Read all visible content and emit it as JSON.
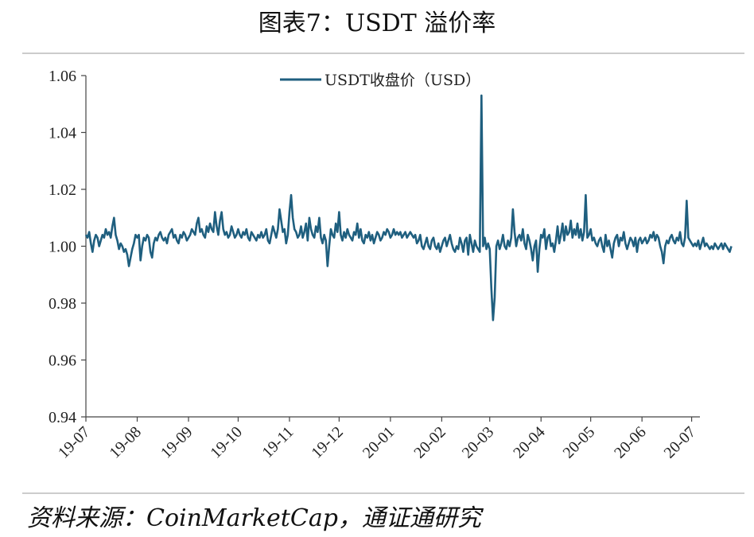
{
  "chart_data": {
    "type": "line",
    "title": "图表7：USDT 溢价率",
    "source": "资料来源：CoinMarketCap，通证通研究",
    "legend": "USDT收盘价（USD）",
    "legend_position": "top-center",
    "ylim": [
      0.94,
      1.06
    ],
    "y_ticks": [
      "1.06",
      "1.04",
      "1.02",
      "1.00",
      "0.98",
      "0.96",
      "0.94"
    ],
    "x_ticks": [
      "19-07",
      "19-08",
      "19-09",
      "19-10",
      "19-11",
      "19-12",
      "20-01",
      "20-02",
      "20-03",
      "20-04",
      "20-05",
      "20-06",
      "20-07"
    ],
    "grid": false,
    "color": "#1f5f7f",
    "series": [
      {
        "name": "USDT收盘价（USD）",
        "x_start": "2019-07-01",
        "values": [
          1.004,
          1.003,
          1.005,
          1.001,
          0.998,
          1.002,
          1.004,
          1.003,
          1.0,
          1.002,
          1.004,
          1.003,
          1.006,
          1.004,
          1.005,
          1.003,
          1.007,
          1.01,
          1.004,
          1.002,
          0.999,
          1.001,
          1.0,
          0.998,
          0.999,
          0.997,
          0.993,
          0.996,
          0.999,
          1.001,
          1.004,
          1.003,
          1.004,
          0.995,
          1.0,
          1.003,
          1.002,
          1.004,
          1.003,
          0.998,
          0.996,
          1.001,
          1.003,
          1.002,
          1.004,
          1.005,
          1.003,
          1.002,
          1.003,
          1.001,
          1.004,
          1.005,
          1.006,
          1.003,
          1.004,
          1.002,
          1.001,
          1.004,
          1.003,
          1.005,
          1.004,
          1.002,
          1.003,
          1.004,
          1.006,
          1.005,
          1.004,
          1.008,
          1.01,
          1.005,
          1.006,
          1.004,
          1.003,
          1.007,
          1.005,
          1.008,
          1.006,
          1.005,
          1.012,
          1.007,
          1.004,
          1.009,
          1.012,
          1.006,
          1.004,
          1.005,
          1.003,
          1.004,
          1.007,
          1.005,
          1.003,
          1.004,
          1.006,
          1.004,
          1.003,
          1.005,
          1.004,
          1.006,
          1.003,
          1.002,
          1.005,
          1.004,
          1.003,
          1.002,
          1.004,
          1.003,
          1.005,
          1.003,
          1.004,
          1.006,
          1.002,
          1.001,
          1.004,
          1.007,
          1.005,
          1.003,
          1.006,
          1.013,
          1.009,
          1.005,
          1.006,
          1.001,
          1.004,
          1.012,
          1.018,
          1.01,
          1.006,
          1.005,
          1.003,
          1.004,
          1.007,
          1.003,
          1.005,
          1.008,
          1.002,
          1.01,
          1.006,
          1.004,
          1.003,
          1.007,
          1.005,
          1.01,
          1.003,
          1.001,
          1.004,
          1.002,
          0.993,
          1.0,
          1.006,
          1.004,
          1.003,
          1.008,
          1.005,
          1.012,
          1.004,
          1.002,
          1.005,
          1.003,
          1.006,
          1.004,
          1.003,
          1.002,
          1.005,
          1.004,
          1.008,
          1.003,
          1.006,
          1.002,
          1.001,
          1.004,
          1.003,
          1.005,
          1.002,
          1.004,
          1.001,
          1.003,
          1.005,
          1.004,
          1.002,
          1.003,
          1.005,
          1.004,
          1.006,
          1.005,
          1.003,
          1.004,
          1.006,
          1.004,
          1.005,
          1.004,
          1.005,
          1.003,
          1.004,
          1.005,
          1.003,
          1.004,
          1.005,
          1.004,
          1.003,
          1.004,
          1.001,
          1.002,
          1.004,
          1.0,
          0.999,
          1.001,
          1.003,
          1.0,
          0.999,
          1.002,
          1.003,
          1.0,
          0.999,
          1.001,
          0.998,
          1.0,
          1.002,
          1.003,
          1.0,
          1.002,
          1.004,
          1.001,
          0.999,
          0.998,
          1.0,
          0.999,
          1.003,
          1.001,
          0.998,
          1.002,
          1.003,
          0.997,
          1.004,
          1.001,
          0.998,
          1.002,
          1.0,
          0.999,
          0.998,
          1.053,
          1.0,
          1.003,
          0.999,
          1.001,
          0.999,
          0.985,
          0.974,
          0.982,
          1.0,
          1.002,
          0.999,
          1.001,
          1.004,
          1.0,
          0.999,
          1.002,
          1.0,
          1.003,
          1.013,
          1.005,
          1.0,
          1.003,
          1.004,
          1.002,
          1.006,
          1.001,
          0.999,
          1.004,
          1.002,
          0.999,
          0.995,
          1.0,
          1.002,
          0.991,
          0.999,
          1.004,
          1.003,
          1.006,
          0.999,
          1.003,
          1.004,
          1.0,
          1.001,
          0.998,
          1.002,
          1.007,
          1.001,
          1.004,
          1.008,
          1.002,
          1.007,
          1.004,
          1.005,
          1.009,
          1.003,
          1.006,
          1.004,
          1.008,
          1.003,
          1.006,
          1.002,
          1.005,
          1.018,
          1.003,
          1.004,
          1.006,
          1.002,
          1.003,
          1.001,
          1.0,
          1.002,
          1.003,
          1.0,
          0.998,
          1.004,
          1.0,
          1.002,
          0.999,
          0.996,
          1.001,
          1.003,
          1.004,
          1.0,
          1.003,
          1.002,
          1.005,
          1.001,
          0.999,
          1.001,
          1.003,
          1.002,
          1.0,
          1.003,
          0.998,
          1.002,
          1.003,
          1.001,
          1.002,
          1.003,
          1.001,
          1.002,
          1.004,
          1.003,
          1.005,
          1.002,
          1.004,
          1.003,
          1.0,
          0.998,
          0.994,
          1.0,
          1.002,
          1.001,
          1.003,
          1.004,
          1.002,
          1.001,
          1.003,
          1.002,
          1.005,
          1.001,
          1.0,
          1.003,
          1.016,
          1.003,
          1.002,
          1.001,
          1.0,
          1.001,
          1.0,
          1.002,
          0.999,
          1.001,
          1.003,
          1.0,
          1.001,
          1.0,
          0.999,
          1.0,
          0.999,
          1.001,
          1.0,
          0.999,
          1.0,
          1.001,
          0.999,
          1.001,
          1.0,
          0.999,
          0.998,
          1.0
        ]
      }
    ]
  }
}
